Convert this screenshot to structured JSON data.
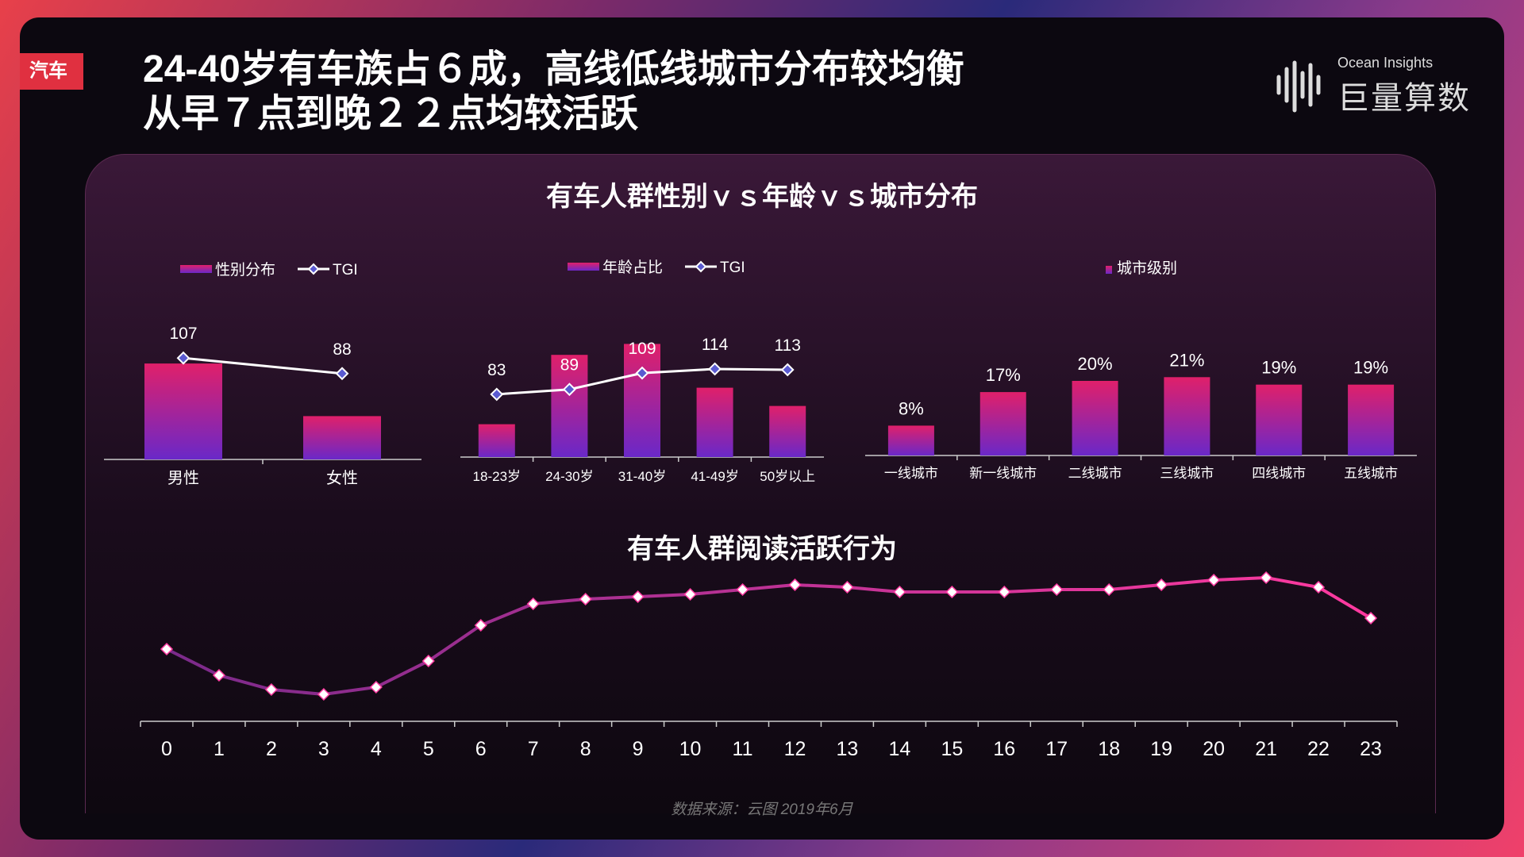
{
  "tag": "汽车",
  "headline": {
    "line1": "24-40岁有车族占６成，高线低线城市分布较均衡",
    "line2": "从早７点到晚２２点均较活跃"
  },
  "logo": {
    "en": "Ocean Insights",
    "cn": "巨量算数"
  },
  "section1_title": "有车人群性别ｖｓ年龄ｖｓ城市分布",
  "section2_title": "有车人群阅读活跃行为",
  "source": "数据来源：云图 2019年6月",
  "colors": {
    "bar_top": "#e0206a",
    "bar_bottom": "#6a28c8",
    "tgi_line": "#ffffff",
    "tgi_marker": "#5a5ad0",
    "activity_start": "#7a2a8a",
    "activity_end": "#ff3aa0"
  },
  "chart_data": [
    {
      "type": "bar",
      "name": "gender",
      "legend": [
        "性别分布",
        "TGI"
      ],
      "categories": [
        "男性",
        "女性"
      ],
      "series": [
        {
          "name": "性别分布",
          "values": [
            0.62,
            0.28
          ]
        },
        {
          "name": "TGI",
          "values": [
            107,
            88
          ],
          "type": "line"
        }
      ]
    },
    {
      "type": "bar",
      "name": "age",
      "legend": [
        "年龄占比",
        "TGI"
      ],
      "categories": [
        "18-23岁",
        "24-30岁",
        "31-40岁",
        "41-49岁",
        "50岁以上"
      ],
      "series": [
        {
          "name": "年龄占比",
          "values": [
            0.09,
            0.28,
            0.31,
            0.19,
            0.14
          ]
        },
        {
          "name": "TGI",
          "values": [
            83,
            89,
            109,
            114,
            113
          ],
          "type": "line"
        }
      ]
    },
    {
      "type": "bar",
      "name": "city",
      "legend": [
        "城市级别"
      ],
      "categories": [
        "一线城市",
        "新一线城市",
        "二线城市",
        "三线城市",
        "四线城市",
        "五线城市"
      ],
      "values": [
        8,
        17,
        20,
        21,
        19,
        19
      ],
      "labels": [
        "8%",
        "17%",
        "20%",
        "21%",
        "19%",
        "19%"
      ]
    },
    {
      "type": "line",
      "name": "activity",
      "x": [
        "0",
        "1",
        "2",
        "3",
        "4",
        "5",
        "6",
        "7",
        "8",
        "9",
        "10",
        "11",
        "12",
        "13",
        "14",
        "15",
        "16",
        "17",
        "18",
        "19",
        "20",
        "21",
        "22",
        "23"
      ],
      "values": [
        1.9,
        1.35,
        1.05,
        0.95,
        1.1,
        1.65,
        2.4,
        2.85,
        2.95,
        3.0,
        3.05,
        3.15,
        3.25,
        3.2,
        3.1,
        3.1,
        3.1,
        3.15,
        3.15,
        3.25,
        3.35,
        3.4,
        3.2,
        2.55
      ],
      "ylim": [
        0,
        5
      ]
    }
  ]
}
